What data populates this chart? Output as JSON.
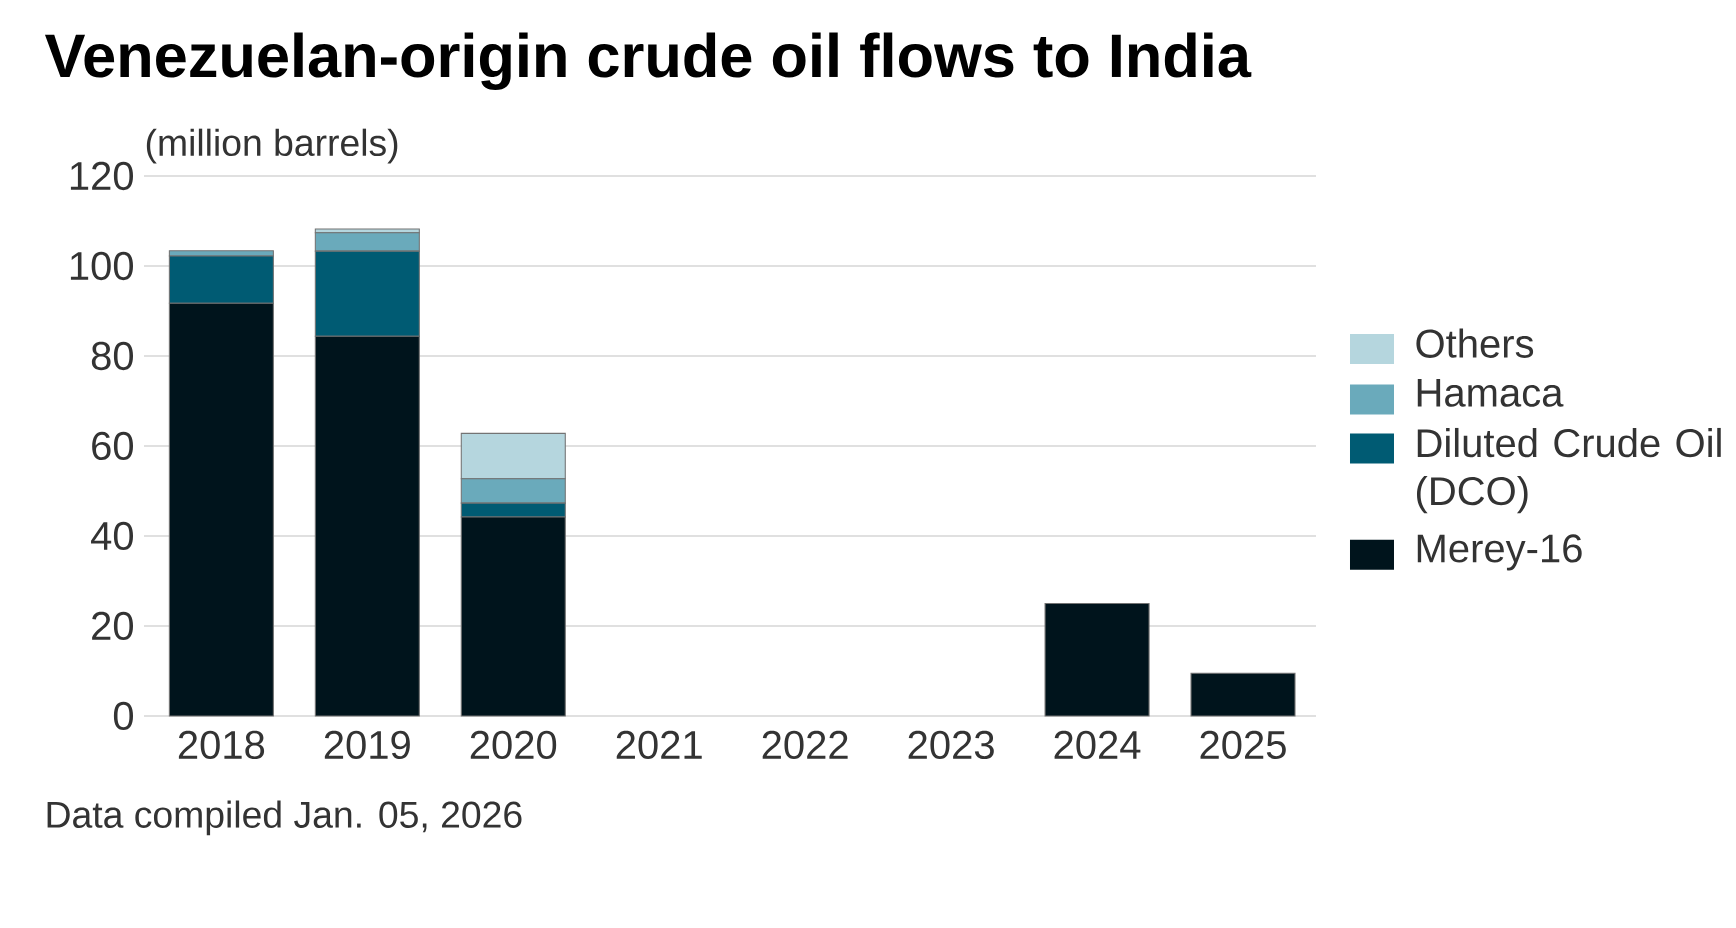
{
  "chart_data": {
    "type": "bar",
    "stacked": true,
    "title": "Venezuelan-origin crude oil flows to India",
    "ylabel": "(million barrels)",
    "categories": [
      "2018",
      "2019",
      "2020",
      "2021",
      "2022",
      "2023",
      "2024",
      "2025"
    ],
    "series": [
      {
        "name": "Merey-16",
        "color": "#00141c",
        "values": [
          91.7,
          84.4,
          44.2,
          0,
          0,
          0,
          25,
          9.5
        ]
      },
      {
        "name": "Diluted Crude Oil (DCO)",
        "color": "#005b73",
        "values": [
          10.5,
          18.9,
          3.1,
          0,
          0,
          0,
          0,
          0
        ]
      },
      {
        "name": "Hamaca",
        "color": "#6aaabb",
        "values": [
          1.2,
          4.1,
          5.4,
          0,
          0,
          0,
          0,
          0
        ]
      },
      {
        "name": "Others",
        "color": "#b5d6de",
        "values": [
          0,
          0.8,
          10.1,
          0,
          0,
          0,
          0,
          0
        ]
      }
    ],
    "ylim": [
      0,
      120
    ],
    "yticks": [
      0,
      20,
      40,
      60,
      80,
      100,
      120
    ],
    "grid": "y",
    "legend": "right",
    "annotations": [
      "Data compiled Jan. 05, 2026"
    ]
  }
}
